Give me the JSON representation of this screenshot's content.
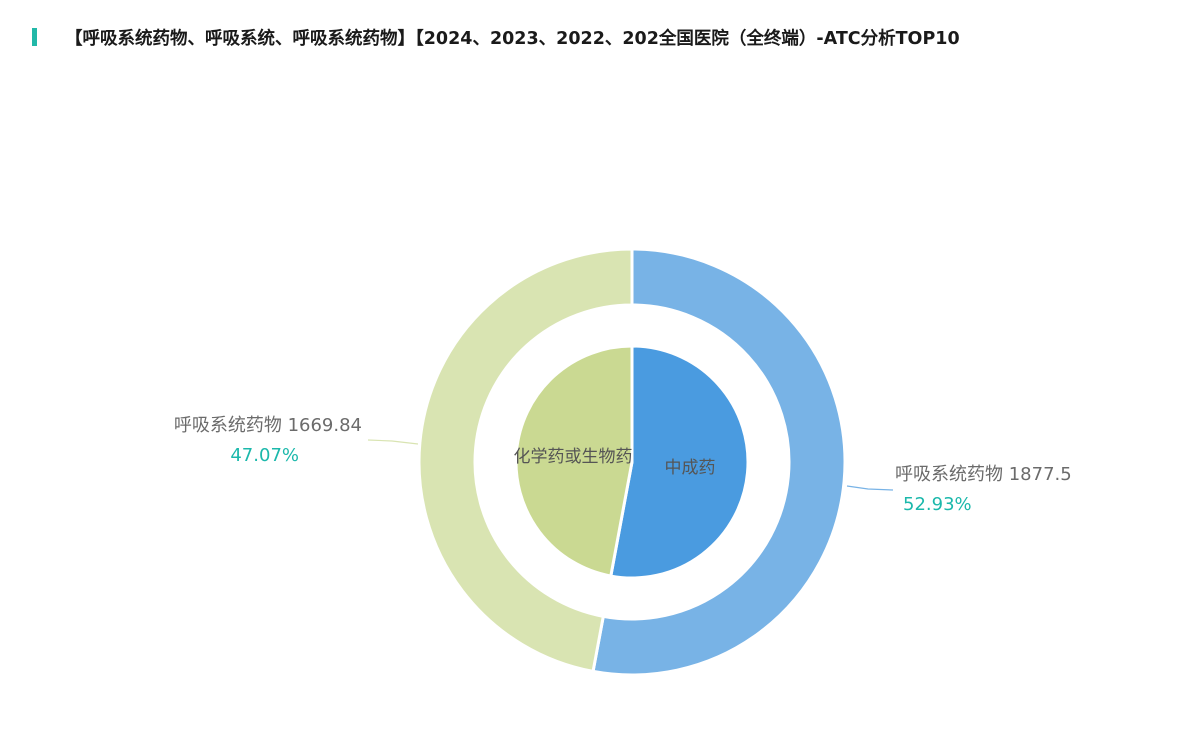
{
  "title": "【呼吸系统药物、呼吸系统、呼吸系统药物】【2024、2023、2022、202全国医院（全终端）-ATC分析TOP10",
  "colors": {
    "accent": "#22b8a8",
    "outer": [
      "#78b3e6",
      "#d9e4b2"
    ],
    "inner": [
      "#4a9be0",
      "#cad992"
    ],
    "percent_text": "#1bb8ab"
  },
  "chart_data": {
    "type": "pie",
    "variant": "nested-donut",
    "outer": {
      "slices": [
        {
          "name": "呼吸系统药物",
          "value": 1877.5,
          "value_label": "1877.5",
          "percent_label": "52.93%"
        },
        {
          "name": "呼吸系统药物",
          "value": 1669.84,
          "value_label": "1669.84",
          "percent_label": "47.07%"
        }
      ]
    },
    "inner": {
      "slices": [
        {
          "name": "中成药",
          "value": 1877.5
        },
        {
          "name": "化学药或生物药",
          "value": 1669.84
        }
      ]
    },
    "legend": "none"
  }
}
